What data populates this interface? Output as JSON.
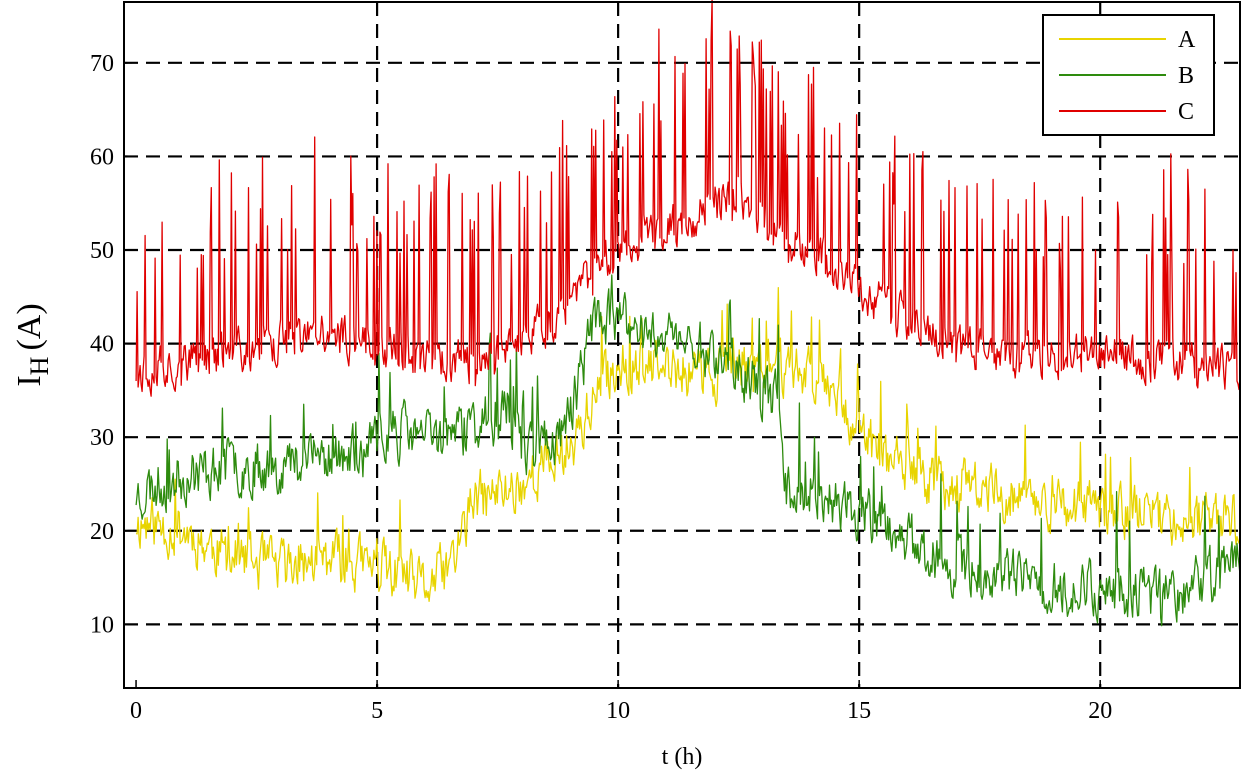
{
  "chart_data": {
    "type": "line",
    "title": "",
    "xlabel": "t (h)",
    "ylabel_main": "I",
    "ylabel_sub": "H",
    "ylabel_unit": "(A)",
    "xlim": [
      -0.25,
      22.9
    ],
    "ylim": [
      3.2,
      76.5
    ],
    "xticks": [
      0,
      5,
      10,
      15,
      20
    ],
    "yticks": [
      10,
      20,
      30,
      40,
      50,
      60,
      70
    ],
    "grid": "dashed",
    "legend_position": "top-right",
    "series": [
      {
        "name": "A",
        "color": "#e8d400",
        "baseline": [
          [
            0,
            21
          ],
          [
            1,
            20
          ],
          [
            2,
            17
          ],
          [
            3,
            16
          ],
          [
            4,
            17
          ],
          [
            5,
            16
          ],
          [
            6,
            14
          ],
          [
            6.5,
            16
          ],
          [
            7,
            23
          ],
          [
            8,
            25
          ],
          [
            9,
            29
          ],
          [
            9.5,
            34
          ],
          [
            10,
            38
          ],
          [
            11,
            37
          ],
          [
            12,
            37
          ],
          [
            13,
            38
          ],
          [
            14,
            37
          ],
          [
            14.5,
            36
          ],
          [
            15,
            30
          ],
          [
            16,
            26
          ],
          [
            17,
            25
          ],
          [
            18,
            24
          ],
          [
            19,
            23
          ],
          [
            20,
            22
          ],
          [
            21,
            22
          ],
          [
            22,
            21
          ],
          [
            22.9,
            21
          ]
        ],
        "noise": 3.2,
        "spike_prob": 0.03,
        "spike_dir": 1,
        "spike_mag": 6,
        "seed": 11
      },
      {
        "name": "B",
        "color": "#2e8b0e",
        "baseline": [
          [
            0,
            24
          ],
          [
            1,
            26
          ],
          [
            2,
            27
          ],
          [
            3,
            27
          ],
          [
            4,
            28
          ],
          [
            4.8,
            28
          ],
          [
            5,
            29
          ],
          [
            5.1,
            31
          ],
          [
            6,
            30
          ],
          [
            7,
            31
          ],
          [
            7.7,
            33
          ],
          [
            8,
            29
          ],
          [
            8.8,
            30
          ],
          [
            9.2,
            36
          ],
          [
            9.5,
            43
          ],
          [
            10,
            42
          ],
          [
            11,
            41
          ],
          [
            12,
            39
          ],
          [
            13,
            35
          ],
          [
            13.3,
            34
          ],
          [
            13.5,
            25
          ],
          [
            14,
            24
          ],
          [
            14.4,
            23
          ],
          [
            15,
            22
          ],
          [
            16,
            19
          ],
          [
            17,
            16
          ],
          [
            18,
            15
          ],
          [
            19,
            14
          ],
          [
            20,
            14
          ],
          [
            21,
            13
          ],
          [
            22,
            14
          ],
          [
            22.9,
            17
          ]
        ],
        "noise": 3.2,
        "spike_prob": 0.03,
        "spike_dir": 1,
        "spike_mag": 7,
        "seed": 23
      },
      {
        "name": "C",
        "color": "#e00000",
        "baseline": [
          [
            0,
            37
          ],
          [
            1,
            38
          ],
          [
            2,
            39
          ],
          [
            3,
            40
          ],
          [
            4,
            41
          ],
          [
            5,
            40
          ],
          [
            6,
            38
          ],
          [
            7,
            38
          ],
          [
            8,
            40
          ],
          [
            9,
            44
          ],
          [
            9.5,
            48
          ],
          [
            10,
            50
          ],
          [
            11,
            52
          ],
          [
            12,
            55
          ],
          [
            12.5,
            56
          ],
          [
            13,
            53
          ],
          [
            14,
            50
          ],
          [
            15,
            46
          ],
          [
            16,
            42
          ],
          [
            17,
            40
          ],
          [
            18,
            39
          ],
          [
            19,
            39
          ],
          [
            20,
            39
          ],
          [
            21,
            38
          ],
          [
            22,
            38
          ],
          [
            22.9,
            37
          ]
        ],
        "noise": 2.6,
        "spike_prob": 0.15,
        "spike_dir": 1,
        "spike_mag": 18,
        "seed": 37
      }
    ]
  }
}
